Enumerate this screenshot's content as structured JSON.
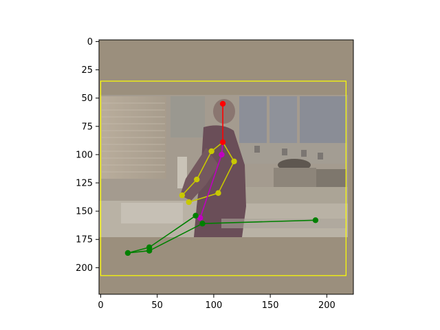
{
  "chart_data": {
    "type": "scatter",
    "title": "",
    "xlabel": "",
    "ylabel": "",
    "xlim": [
      -1.5,
      223.5
    ],
    "ylim": [
      223.5,
      -1.5
    ],
    "y_inverted": true,
    "xticks": [
      0,
      50,
      100,
      150,
      200
    ],
    "yticks": [
      0,
      25,
      50,
      75,
      100,
      125,
      150,
      175,
      200
    ],
    "grid": false,
    "legend": "none",
    "background_image": "photo-man-in-kitchen-sink",
    "image_colors": {
      "wash": "#9b8f7d",
      "wall": "#a49b8f",
      "cabinet": "#8c8f98",
      "shirt": "#6a4e58",
      "counter": "#b9b2a5"
    },
    "bounding_box": {
      "x0": 0,
      "y0": 35,
      "x1": 217,
      "y1": 207,
      "color": "#ffff00"
    },
    "keypoints": [
      {
        "id": "head",
        "x": 108,
        "y": 55,
        "color": "#ff0000"
      },
      {
        "id": "neck",
        "x": 108,
        "y": 89,
        "color": "#ff0000"
      },
      {
        "id": "l_shoulder",
        "x": 98,
        "y": 97,
        "color": "#c8c800"
      },
      {
        "id": "l_elbow",
        "x": 85,
        "y": 122,
        "color": "#c8c800"
      },
      {
        "id": "l_wrist",
        "x": 72,
        "y": 136,
        "color": "#c8c800"
      },
      {
        "id": "r_shoulder",
        "x": 118,
        "y": 106,
        "color": "#c8c800"
      },
      {
        "id": "r_elbow",
        "x": 104,
        "y": 134,
        "color": "#c8c800"
      },
      {
        "id": "r_wrist",
        "x": 78,
        "y": 142,
        "color": "#c8c800"
      },
      {
        "id": "mid_torso",
        "x": 107,
        "y": 100,
        "color": "#c000c0"
      },
      {
        "id": "pelvis",
        "x": 88,
        "y": 156,
        "color": "#c000c0"
      },
      {
        "id": "l_hip",
        "x": 84,
        "y": 154,
        "color": "#008000"
      },
      {
        "id": "r_hip",
        "x": 90,
        "y": 161,
        "color": "#008000"
      },
      {
        "id": "l_knee",
        "x": 43,
        "y": 182,
        "color": "#008000"
      },
      {
        "id": "r_knee",
        "x": 43,
        "y": 185,
        "color": "#008000"
      },
      {
        "id": "l_ankle",
        "x": 24,
        "y": 187,
        "color": "#008000"
      },
      {
        "id": "r_ankle",
        "x": 190,
        "y": 158,
        "color": "#008000"
      }
    ],
    "limbs": [
      {
        "from": "head",
        "to": "neck",
        "color": "#ff0000"
      },
      {
        "from": "neck",
        "to": "l_shoulder",
        "color": "#c8c800"
      },
      {
        "from": "l_shoulder",
        "to": "l_elbow",
        "color": "#c8c800"
      },
      {
        "from": "l_elbow",
        "to": "l_wrist",
        "color": "#c8c800"
      },
      {
        "from": "neck",
        "to": "r_shoulder",
        "color": "#c8c800"
      },
      {
        "from": "r_shoulder",
        "to": "r_elbow",
        "color": "#c8c800"
      },
      {
        "from": "r_elbow",
        "to": "r_wrist",
        "color": "#c8c800"
      },
      {
        "from": "neck",
        "to": "mid_torso",
        "color": "#c000c0"
      },
      {
        "from": "mid_torso",
        "to": "pelvis",
        "color": "#c000c0"
      },
      {
        "from": "pelvis",
        "to": "l_hip",
        "color": "#008000"
      },
      {
        "from": "pelvis",
        "to": "r_hip",
        "color": "#008000"
      },
      {
        "from": "l_hip",
        "to": "l_knee",
        "color": "#008000"
      },
      {
        "from": "l_knee",
        "to": "l_ankle",
        "color": "#008000"
      },
      {
        "from": "r_hip",
        "to": "r_knee",
        "color": "#008000"
      },
      {
        "from": "r_knee",
        "to": "l_ankle",
        "color": "#008000"
      },
      {
        "from": "r_hip",
        "to": "r_ankle",
        "color": "#008000"
      }
    ]
  }
}
